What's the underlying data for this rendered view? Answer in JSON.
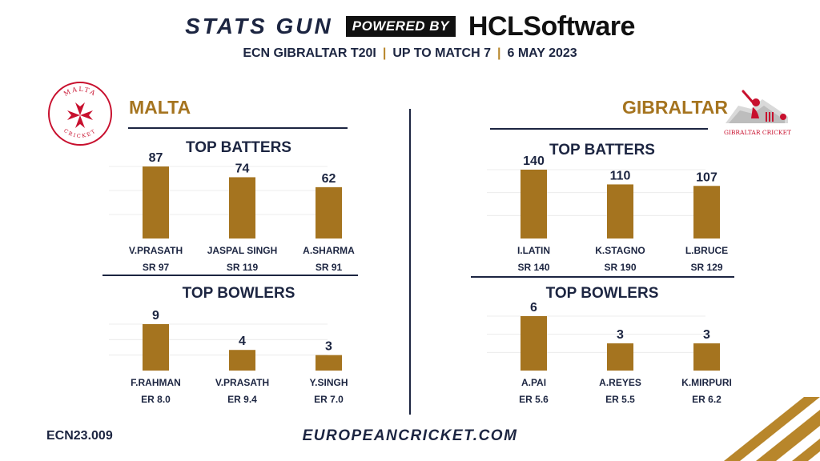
{
  "header": {
    "brand_stats": "STATS GUN",
    "brand_powered": "POWERED BY",
    "brand_sponsor": "HCLSoftware",
    "subtitle_parts": [
      "ECN GIBRALTAR T20I",
      "UP TO MATCH 7",
      "6 MAY 2023"
    ],
    "separator": "|"
  },
  "teams": {
    "left": {
      "name": "MALTA",
      "logo_text": "MALTA CRICKET",
      "logo_icon": "maltese-cross-icon",
      "color": "#c8102e"
    },
    "right": {
      "name": "GIBRALTAR",
      "logo_text": "GIBRALTAR CRICKET",
      "logo_icon": "batsman-rock-icon",
      "color": "#c8102e"
    }
  },
  "colors": {
    "bar": "#a5741f",
    "navy": "#1c2541",
    "gold": "#b8862b"
  },
  "chart_data": [
    {
      "type": "bar",
      "title": "TOP BATTERS",
      "team": "MALTA",
      "categories": [
        "V.PRASATH",
        "JASPAL SINGH",
        "A.SHARMA"
      ],
      "values": [
        87,
        74,
        62
      ],
      "sublabels": [
        "SR 97",
        "SR 119",
        "SR 91"
      ],
      "ylim": [
        0,
        100
      ]
    },
    {
      "type": "bar",
      "title": "TOP BOWLERS",
      "team": "MALTA",
      "categories": [
        "F.RAHMAN",
        "V.PRASATH",
        "Y.SINGH"
      ],
      "values": [
        9,
        4,
        3
      ],
      "sublabels": [
        "ER 8.0",
        "ER 9.4",
        "ER 7.0"
      ],
      "ylim": [
        0,
        10
      ]
    },
    {
      "type": "bar",
      "title": "TOP BATTERS",
      "team": "GIBRALTAR",
      "categories": [
        "I.LATIN",
        "K.STAGNO",
        "L.BRUCE"
      ],
      "values": [
        140,
        110,
        107
      ],
      "sublabels": [
        "SR 140",
        "SR 190",
        "SR 129"
      ],
      "ylim": [
        0,
        160
      ]
    },
    {
      "type": "bar",
      "title": "TOP BOWLERS",
      "team": "GIBRALTAR",
      "categories": [
        "A.PAI",
        "A.REYES",
        "K.MIRPURI"
      ],
      "values": [
        6,
        3,
        3
      ],
      "sublabels": [
        "ER 5.6",
        "ER 5.5",
        "ER 6.2"
      ],
      "ylim": [
        0,
        7
      ]
    }
  ],
  "footer": {
    "code": "ECN23.009",
    "url": "EUROPEANCRICKET.COM"
  }
}
